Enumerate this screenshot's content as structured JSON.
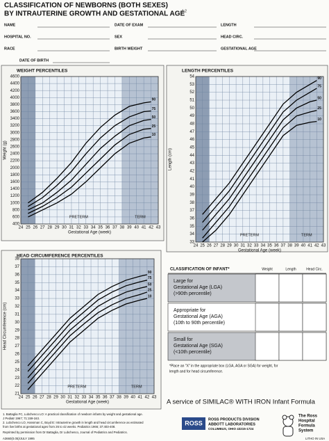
{
  "header": {
    "title_line1": "CLASSIFICATION OF NEWBORNS (BOTH SEXES)",
    "title_line2": "BY INTRAUTERINE GROWTH AND GESTATIONAL AGE",
    "superscript": "1,2"
  },
  "form": {
    "rows": [
      [
        "NAME",
        "DATE OF EXAM",
        "LENGTH"
      ],
      [
        "HOSPITAL NO.",
        "SEX",
        "HEAD CIRC."
      ],
      [
        "RACE",
        "BIRTH WEIGHT",
        "GESTATIONAL AGE"
      ],
      [
        "DATE OF BIRTH"
      ]
    ]
  },
  "chart_data": [
    {
      "type": "line",
      "title": "WEIGHT PERCENTILES",
      "xlabel": "Gestational Age (week)",
      "ylabel": "Weight (g)",
      "x": [
        25,
        27,
        29,
        31,
        33,
        35,
        37,
        39,
        41,
        42
      ],
      "series": [
        {
          "name": "90",
          "color": "#000000",
          "values": [
            1000,
            1300,
            1700,
            2150,
            2700,
            3150,
            3500,
            3750,
            3850,
            3880
          ]
        },
        {
          "name": "75",
          "color": "#000000",
          "values": [
            900,
            1150,
            1500,
            1900,
            2400,
            2850,
            3200,
            3450,
            3600,
            3620
          ]
        },
        {
          "name": "50",
          "color": "#000000",
          "values": [
            800,
            1000,
            1300,
            1650,
            2100,
            2550,
            2900,
            3200,
            3350,
            3380
          ]
        },
        {
          "name": "25",
          "color": "#000000",
          "values": [
            700,
            900,
            1150,
            1450,
            1850,
            2250,
            2650,
            2950,
            3100,
            3120
          ]
        },
        {
          "name": "10",
          "color": "#000000",
          "values": [
            600,
            800,
            1000,
            1250,
            1600,
            2000,
            2400,
            2700,
            2850,
            2880
          ]
        }
      ],
      "xlim": [
        24,
        43
      ],
      "xticks": [
        24,
        25,
        26,
        27,
        28,
        29,
        30,
        31,
        32,
        33,
        34,
        35,
        36,
        37,
        38,
        39,
        40,
        41,
        42,
        43
      ],
      "ylim": [
        400,
        4600
      ],
      "yticks": [
        400,
        600,
        800,
        1000,
        1200,
        1400,
        1600,
        1800,
        2000,
        2200,
        2400,
        2600,
        2800,
        3000,
        3200,
        3400,
        3600,
        3800,
        4000,
        4200,
        4400,
        4600
      ],
      "grid": true,
      "annotations": [
        "PRETERM",
        "TERM"
      ]
    },
    {
      "type": "line",
      "title": "LENGTH PERCENTILES",
      "xlabel": "Gestational Age (week)",
      "ylabel": "Length (cm)",
      "x": [
        25,
        27,
        29,
        31,
        33,
        35,
        37,
        39,
        41,
        42
      ],
      "series": [
        {
          "name": "90",
          "color": "#000000",
          "values": [
            36.5,
            38.5,
            40.5,
            43,
            45.5,
            48,
            50.5,
            52,
            53,
            53.5
          ]
        },
        {
          "name": "75",
          "color": "#000000",
          "values": [
            35.5,
            37.5,
            39.5,
            42,
            44.5,
            47,
            49.5,
            51,
            52,
            52.5
          ]
        },
        {
          "name": "50",
          "color": "#000000",
          "values": [
            34.5,
            36.5,
            38.5,
            41,
            43.5,
            46,
            48.5,
            50,
            50.8,
            51
          ]
        },
        {
          "name": "25",
          "color": "#000000",
          "values": [
            33.5,
            35.5,
            37.5,
            40,
            42.5,
            45,
            47.5,
            49,
            49.5,
            49.7
          ]
        },
        {
          "name": "10",
          "color": "#000000",
          "values": [
            33,
            34.5,
            36.5,
            39,
            41.5,
            44,
            46.5,
            47.8,
            48.2,
            48.3
          ]
        }
      ],
      "xlim": [
        24,
        43
      ],
      "xticks": [
        24,
        25,
        26,
        27,
        28,
        29,
        30,
        31,
        32,
        33,
        34,
        35,
        36,
        37,
        38,
        39,
        40,
        41,
        42,
        43
      ],
      "ylim": [
        33,
        54
      ],
      "yticks": [
        33,
        34,
        35,
        36,
        37,
        38,
        39,
        40,
        41,
        42,
        43,
        44,
        45,
        46,
        47,
        48,
        49,
        50,
        51,
        52,
        53,
        54
      ],
      "grid": true,
      "annotations": [
        "PRETERM",
        "TERM"
      ]
    },
    {
      "type": "line",
      "title": "HEAD CIRCUMFERENCE PERCENTILES",
      "xlabel": "Gestational Age (week)",
      "ylabel": "Head Circumference (cm)",
      "x": [
        25,
        27,
        29,
        31,
        33,
        35,
        37,
        39,
        41,
        42
      ],
      "series": [
        {
          "name": "90",
          "color": "#000000",
          "values": [
            24.5,
            26.5,
            28.5,
            30.5,
            32,
            33.5,
            34.5,
            35.3,
            35.8,
            36
          ]
        },
        {
          "name": "75",
          "color": "#000000",
          "values": [
            23.8,
            25.8,
            27.8,
            29.8,
            31.3,
            32.8,
            33.8,
            34.6,
            35.1,
            35.3
          ]
        },
        {
          "name": "50",
          "color": "#000000",
          "values": [
            23,
            25,
            27,
            29,
            30.5,
            32,
            33,
            33.8,
            34.3,
            34.5
          ]
        },
        {
          "name": "25",
          "color": "#000000",
          "values": [
            22.3,
            24.3,
            26.3,
            28.3,
            29.8,
            31.2,
            32.2,
            33,
            33.5,
            33.8
          ]
        },
        {
          "name": "10",
          "color": "#000000",
          "values": [
            21.5,
            23.5,
            25.5,
            27.5,
            29,
            30.5,
            31.5,
            32.3,
            32.8,
            33
          ]
        }
      ],
      "xlim": [
        24,
        43
      ],
      "xticks": [
        24,
        25,
        26,
        27,
        28,
        29,
        30,
        31,
        32,
        33,
        34,
        35,
        36,
        37,
        38,
        39,
        40,
        41,
        42,
        43
      ],
      "ylim": [
        21,
        38
      ],
      "yticks": [
        21,
        22,
        23,
        24,
        25,
        26,
        27,
        28,
        29,
        30,
        31,
        32,
        33,
        34,
        35,
        36,
        37,
        38
      ],
      "grid": true,
      "annotations": [
        "PRETERM",
        "TERM"
      ]
    }
  ],
  "table": {
    "title": "CLASSIFICATION OF INFANT*",
    "columns": [
      "Weight",
      "Length",
      "Head Circ."
    ],
    "rows": [
      [
        "Large for",
        "Gestational Age (LGA)",
        "(>90th percentile)"
      ],
      [
        "Appropriate for",
        "Gestational Age (AGA)",
        "(10th to 90th percentile)"
      ],
      [
        "Small for",
        "Gestational Age (SGA)",
        "(<10th percentile)"
      ]
    ],
    "footnote": [
      "*Place an \"X\" in the appropriate box (LGA, AGA or SGA) for weight, for",
      "length and for head circumference."
    ]
  },
  "footer": {
    "references": [
      "1. Battaglia FC, Lubchenco LO: A practical classification of newborn infants by weight and gestational age.",
      "J Pediatr 1967; 71:159-163.",
      "2. Lubchenco LO, Hansman C, Boyd E: Intrauterine growth in length and head circumference as estimated",
      "from live births at gestational ages from 26 to 42 weeks. Pediatrics 1966; 37:403-408."
    ],
    "reprint": "Reprinted by permission from Dr Battaglia, Dr Lubchenco, Journal of Pediatrics and Pediatrics.",
    "code": "A3660(0.05)/JULY 1995",
    "service": "A service of SIMILAC® WITH IRON Infant Formula",
    "logo": "ROSS",
    "division": [
      "ROSS PRODUCTS DIVISION",
      "ABBOTT LABORATORIES",
      "COLUMBUS, OHIO 43215-1724"
    ],
    "system": [
      "The Ross",
      "Hospital",
      "Formula",
      "System"
    ],
    "litho": "LITHO IN USA"
  }
}
